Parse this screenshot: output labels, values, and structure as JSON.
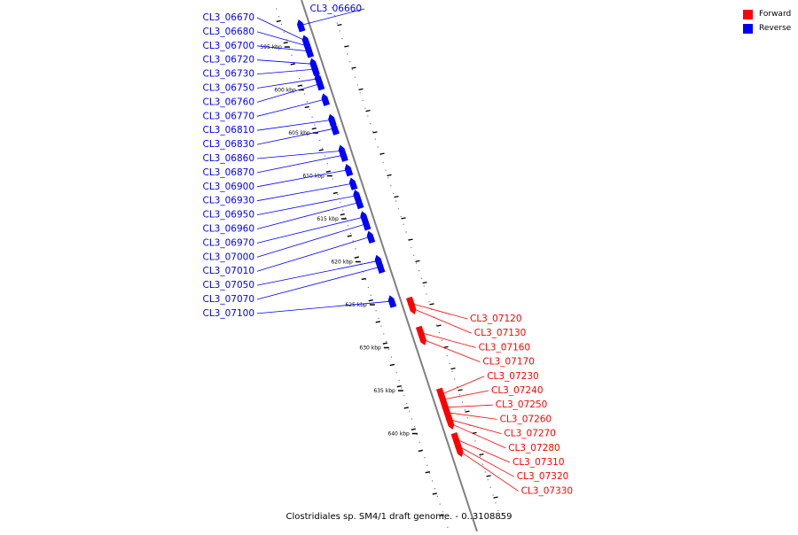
{
  "legend": {
    "items": [
      {
        "label": "Forward",
        "color": "#ff0000"
      },
      {
        "label": "Reverse",
        "color": "#0000ff"
      }
    ]
  },
  "caption": "Clostridiales sp. SM4/1 draft genome. - 0..3108859",
  "colors": {
    "forward": "#ff0000",
    "reverse": "#0000ff",
    "axis": "#808080",
    "tick": "#000000"
  },
  "kbp_ticks": [
    {
      "kbp": 595,
      "label": "595 kbp"
    },
    {
      "kbp": 600,
      "label": "600 kbp"
    },
    {
      "kbp": 605,
      "label": "605 kbp"
    },
    {
      "kbp": 610,
      "label": "610 kbp"
    },
    {
      "kbp": 615,
      "label": "615 kbp"
    },
    {
      "kbp": 620,
      "label": "620 kbp"
    },
    {
      "kbp": 625,
      "label": "625 kbp"
    },
    {
      "kbp": 630,
      "label": "630 kbp"
    },
    {
      "kbp": 635,
      "label": "635 kbp"
    },
    {
      "kbp": 640,
      "label": "640 kbp"
    }
  ],
  "genes": [
    {
      "label": "CL3_06660",
      "strand": "reverse",
      "kbp": 593.2
    },
    {
      "label": "CL3_06670",
      "strand": "reverse",
      "kbp": 595.0
    },
    {
      "label": "CL3_06680",
      "strand": "reverse",
      "kbp": 595.6
    },
    {
      "label": "CL3_06700",
      "strand": "reverse",
      "kbp": 596.2
    },
    {
      "label": "CL3_06720",
      "strand": "reverse",
      "kbp": 597.7
    },
    {
      "label": "CL3_06730",
      "strand": "reverse",
      "kbp": 598.3
    },
    {
      "label": "CL3_06750",
      "strand": "reverse",
      "kbp": 599.4
    },
    {
      "label": "CL3_06760",
      "strand": "reverse",
      "kbp": 600.0
    },
    {
      "label": "CL3_06770",
      "strand": "reverse",
      "kbp": 601.8
    },
    {
      "label": "CL3_06810",
      "strand": "reverse",
      "kbp": 604.2
    },
    {
      "label": "CL3_06830",
      "strand": "reverse",
      "kbp": 605.2
    },
    {
      "label": "CL3_06860",
      "strand": "reverse",
      "kbp": 607.8
    },
    {
      "label": "CL3_06870",
      "strand": "reverse",
      "kbp": 608.3
    },
    {
      "label": "CL3_06900",
      "strand": "reverse",
      "kbp": 610.0
    },
    {
      "label": "CL3_06930",
      "strand": "reverse",
      "kbp": 611.6
    },
    {
      "label": "CL3_06950",
      "strand": "reverse",
      "kbp": 613.0
    },
    {
      "label": "CL3_06960",
      "strand": "reverse",
      "kbp": 613.8
    },
    {
      "label": "CL3_06970",
      "strand": "reverse",
      "kbp": 615.5
    },
    {
      "label": "CL3_07000",
      "strand": "reverse",
      "kbp": 616.3
    },
    {
      "label": "CL3_07010",
      "strand": "reverse",
      "kbp": 617.8
    },
    {
      "label": "CL3_07050",
      "strand": "reverse",
      "kbp": 620.6
    },
    {
      "label": "CL3_07070",
      "strand": "reverse",
      "kbp": 621.3
    },
    {
      "label": "CL3_07100",
      "strand": "reverse",
      "kbp": 625.3
    },
    {
      "label": "CL3_07120",
      "strand": "forward",
      "kbp": 626.2
    },
    {
      "label": "CL3_07130",
      "strand": "forward",
      "kbp": 626.8
    },
    {
      "label": "CL3_07160",
      "strand": "forward",
      "kbp": 629.6
    },
    {
      "label": "CL3_07170",
      "strand": "forward",
      "kbp": 630.4
    },
    {
      "label": "CL3_07230",
      "strand": "forward",
      "kbp": 636.8
    },
    {
      "label": "CL3_07240",
      "strand": "forward",
      "kbp": 637.4
    },
    {
      "label": "CL3_07250",
      "strand": "forward",
      "kbp": 638.3
    },
    {
      "label": "CL3_07260",
      "strand": "forward",
      "kbp": 638.9
    },
    {
      "label": "CL3_07270",
      "strand": "forward",
      "kbp": 639.7
    },
    {
      "label": "CL3_07280",
      "strand": "forward",
      "kbp": 640.2
    },
    {
      "label": "CL3_07310",
      "strand": "forward",
      "kbp": 642.0
    },
    {
      "label": "CL3_07320",
      "strand": "forward",
      "kbp": 642.8
    },
    {
      "label": "CL3_07330",
      "strand": "forward",
      "kbp": 643.4
    }
  ]
}
